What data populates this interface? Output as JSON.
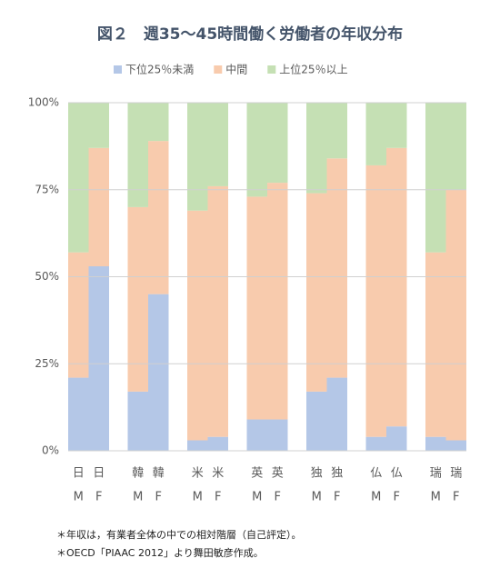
{
  "chart_data": {
    "type": "stacked_bar",
    "title": "図２　週35～45時間働く労働者の年収分布",
    "categories": [
      "日",
      "日",
      "韓",
      "韓",
      "米",
      "米",
      "英",
      "英",
      "独",
      "独",
      "仏",
      "仏",
      "瑞",
      "瑞"
    ],
    "sub_categories": [
      "M",
      "F",
      "M",
      "F",
      "M",
      "F",
      "M",
      "F",
      "M",
      "F",
      "M",
      "F",
      "M",
      "F"
    ],
    "series": [
      {
        "name": "下位25％未満",
        "color": "#b4c7e7",
        "values": [
          21,
          53,
          17,
          45,
          3,
          4,
          9,
          9,
          17,
          21,
          4,
          7,
          4,
          3
        ]
      },
      {
        "name": "中間",
        "color": "#f8cbad",
        "values": [
          36,
          34,
          53,
          44,
          66,
          72,
          64,
          68,
          57,
          63,
          78,
          80,
          53,
          72
        ]
      },
      {
        "name": "上位25％以上",
        "color": "#c5e0b4",
        "values": [
          43,
          13,
          30,
          11,
          31,
          24,
          27,
          23,
          26,
          16,
          18,
          13,
          43,
          25
        ]
      }
    ],
    "ylim": [
      0,
      100
    ],
    "yticks": [
      {
        "value": 0,
        "label": "0%"
      },
      {
        "value": 25,
        "label": "25%"
      },
      {
        "value": 50,
        "label": "50%"
      },
      {
        "value": 75,
        "label": "75%"
      },
      {
        "value": 100,
        "label": "100%"
      }
    ],
    "grid": true,
    "legend": "top",
    "notes": [
      "＊年収は，有業者全体の中での相対階層（自己評定）。",
      "＊OECD「PIAAC 2012」より舞田敏彦作成。"
    ]
  }
}
